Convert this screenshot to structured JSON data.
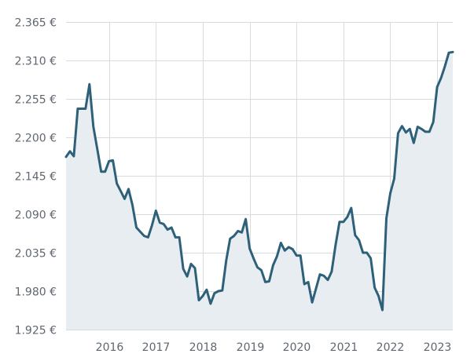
{
  "chart_data": {
    "type": "area",
    "title": "",
    "xlabel": "",
    "ylabel": "",
    "ylim": [
      1925,
      2365
    ],
    "xlim": [
      "2015-02-01",
      "2023-05-01"
    ],
    "y_ticks": [
      {
        "value": 1925,
        "label": "1.925 €"
      },
      {
        "value": 1980,
        "label": "1.980 €"
      },
      {
        "value": 2035,
        "label": "2.035 €"
      },
      {
        "value": 2090,
        "label": "2.090 €"
      },
      {
        "value": 2145,
        "label": "2.145 €"
      },
      {
        "value": 2200,
        "label": "2.200 €"
      },
      {
        "value": 2255,
        "label": "2.255 €"
      },
      {
        "value": 2310,
        "label": "2.310 €"
      },
      {
        "value": 2365,
        "label": "2.365 €"
      }
    ],
    "x_ticks": [
      {
        "value": "2016-01-01",
        "label": "2016"
      },
      {
        "value": "2017-01-01",
        "label": "2017"
      },
      {
        "value": "2018-01-01",
        "label": "2018"
      },
      {
        "value": "2019-01-01",
        "label": "2019"
      },
      {
        "value": "2020-01-01",
        "label": "2020"
      },
      {
        "value": "2021-01-01",
        "label": "2021"
      },
      {
        "value": "2022-01-01",
        "label": "2022"
      },
      {
        "value": "2023-01-01",
        "label": "2023"
      }
    ],
    "grid": true,
    "legend": "none",
    "colors": {
      "line": "#2e6179",
      "fill": "#e8edf2",
      "grid": "#d9dcdf",
      "tick_text": "#5f6770"
    },
    "series": [
      {
        "x": [
          "2015-02",
          "2015-03",
          "2015-04",
          "2015-05",
          "2015-06",
          "2015-07",
          "2015-08",
          "2015-09",
          "2015-10",
          "2015-11",
          "2015-12",
          "2016-01",
          "2016-02",
          "2016-03",
          "2016-04",
          "2016-05",
          "2016-06",
          "2016-07",
          "2016-08",
          "2016-09",
          "2016-10",
          "2016-11",
          "2016-12",
          "2017-01",
          "2017-02",
          "2017-03",
          "2017-04",
          "2017-05",
          "2017-06",
          "2017-07",
          "2017-08",
          "2017-09",
          "2017-10",
          "2017-11",
          "2017-12",
          "2018-01",
          "2018-02",
          "2018-03",
          "2018-04",
          "2018-05",
          "2018-06",
          "2018-07",
          "2018-08",
          "2018-09",
          "2018-10",
          "2018-11",
          "2018-12",
          "2019-01",
          "2019-02",
          "2019-03",
          "2019-04",
          "2019-05",
          "2019-06",
          "2019-07",
          "2019-08",
          "2019-09",
          "2019-10",
          "2019-11",
          "2019-12",
          "2020-01",
          "2020-02",
          "2020-03",
          "2020-04",
          "2020-05",
          "2020-06",
          "2020-07",
          "2020-08",
          "2020-09",
          "2020-10",
          "2020-11",
          "2020-12",
          "2021-01",
          "2021-02",
          "2021-03",
          "2021-04",
          "2021-05",
          "2021-06",
          "2021-07",
          "2021-08",
          "2021-09",
          "2021-10",
          "2021-11",
          "2021-12",
          "2022-01",
          "2022-02",
          "2022-03",
          "2022-04",
          "2022-05",
          "2022-06",
          "2022-07",
          "2022-08",
          "2022-09",
          "2022-10",
          "2022-11",
          "2022-12",
          "2023-01",
          "2023-02",
          "2023-03",
          "2023-04",
          "2023-05"
        ],
        "values": [
          2172,
          2180,
          2173,
          2241,
          2241,
          2241,
          2276,
          2215,
          2183,
          2151,
          2151,
          2166,
          2167,
          2134,
          2123,
          2112,
          2126,
          2103,
          2071,
          2065,
          2059,
          2057,
          2074,
          2095,
          2078,
          2076,
          2068,
          2071,
          2057,
          2057,
          2012,
          2001,
          2019,
          2013,
          1967,
          1973,
          1982,
          1962,
          1977,
          1980,
          1981,
          2024,
          2055,
          2059,
          2066,
          2064,
          2083,
          2041,
          2027,
          2014,
          2010,
          1993,
          1994,
          2017,
          2030,
          2049,
          2038,
          2043,
          2040,
          2031,
          2031,
          1990,
          1993,
          1964,
          1984,
          2004,
          2002,
          1996,
          2008,
          2046,
          2079,
          2079,
          2086,
          2099,
          2060,
          2053,
          2035,
          2035,
          2027,
          1985,
          1973,
          1953,
          2084,
          2120,
          2141,
          2206,
          2216,
          2207,
          2212,
          2192,
          2215,
          2212,
          2208,
          2208,
          2222,
          2272,
          2285,
          2302,
          2321,
          2322
        ]
      }
    ]
  }
}
